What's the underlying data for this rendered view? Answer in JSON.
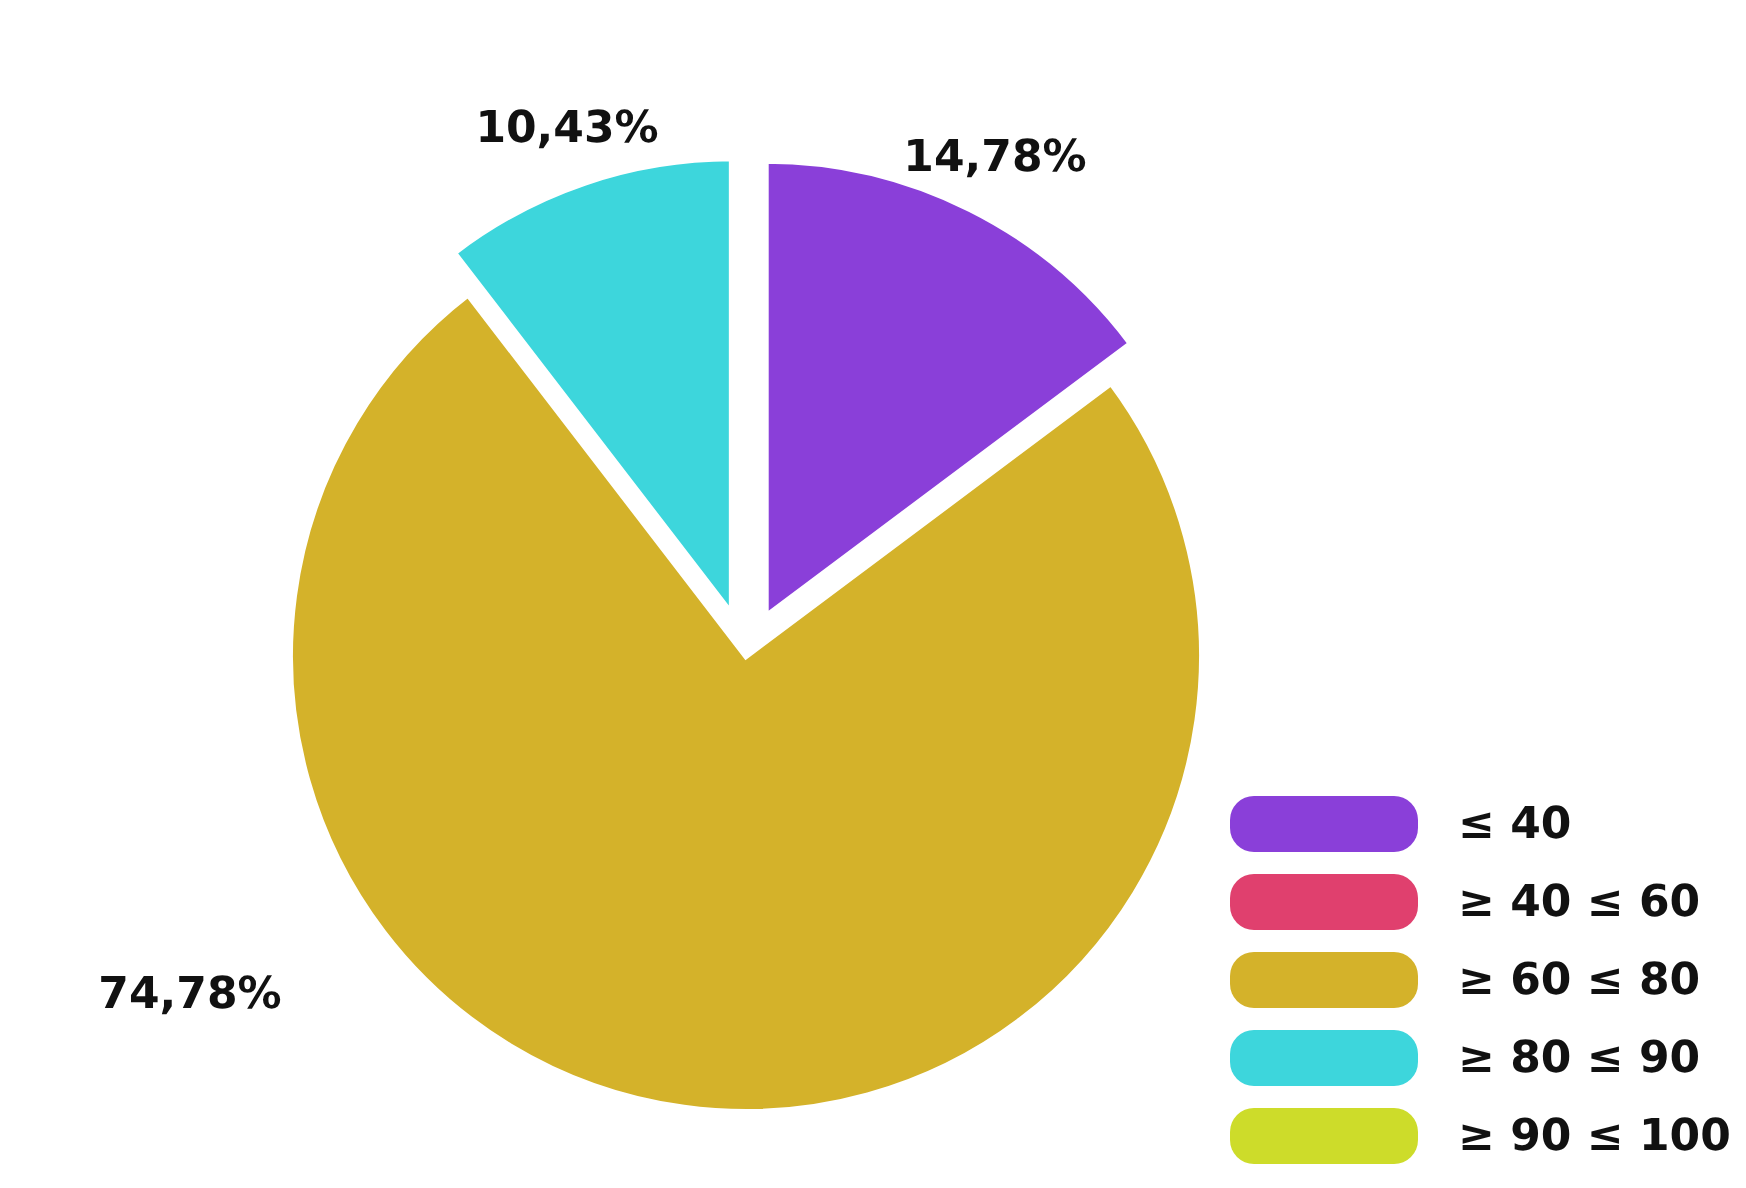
{
  "chart_data": {
    "type": "pie",
    "categories": [
      "≤ 40",
      "≥ 40 ≤ 60",
      "≥ 60 ≤ 80",
      "≥ 80 ≤ 90",
      "≥ 90 ≤ 100"
    ],
    "values": [
      14.78,
      0,
      74.78,
      10.43,
      0
    ],
    "value_labels": [
      "14,78%",
      null,
      "74,78%",
      "10,43%",
      null
    ],
    "colors": [
      "#8a3fd9",
      "#e0406e",
      "#d4b22a",
      "#3dd6dc",
      "#cddc2a"
    ],
    "legend": "bottom right"
  }
}
